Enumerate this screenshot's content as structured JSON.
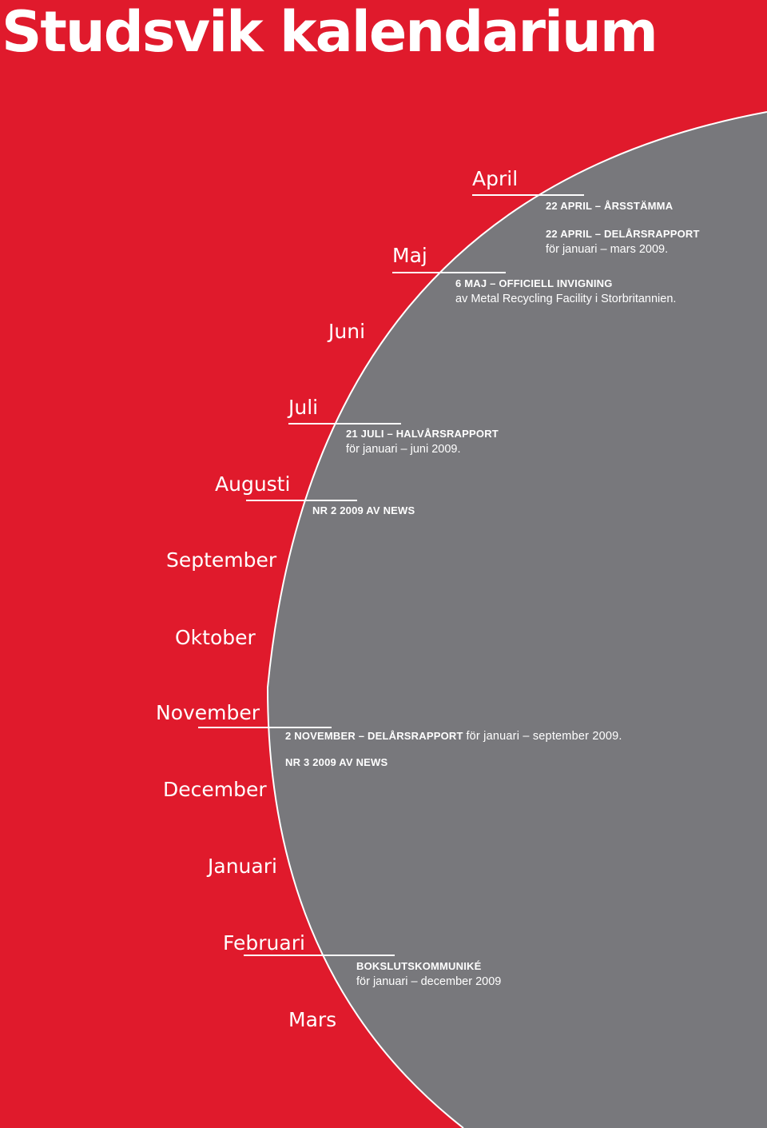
{
  "title": "Studsvik kalendarium",
  "colors": {
    "background": "#e01a2c",
    "disc": "#78787c",
    "text": "#ffffff"
  },
  "months": [
    "April",
    "Maj",
    "Juni",
    "Juli",
    "Augusti",
    "September",
    "Oktober",
    "November",
    "December",
    "Januari",
    "Februari",
    "Mars"
  ],
  "events": [
    {
      "heading": "22 april – Årsstämma"
    },
    {
      "heading": "22 april – Delårsrapport",
      "sub": "för januari – mars 2009."
    },
    {
      "heading": "6 maj – Officiell invigning",
      "sub": "av Metal Recycling Facility i Storbritannien."
    },
    {
      "heading": "21 juli – Halvårsrapport",
      "sub": "för januari – juni 2009."
    },
    {
      "heading": "Nr 2 2009 av News"
    },
    {
      "heading": "2 november – Delårsrapport",
      "inline": "för januari – september 2009."
    },
    {
      "heading": "Nr 3 2009 av News"
    },
    {
      "heading": "Bokslutskommuniké",
      "sub": "för januari – december 2009"
    }
  ]
}
